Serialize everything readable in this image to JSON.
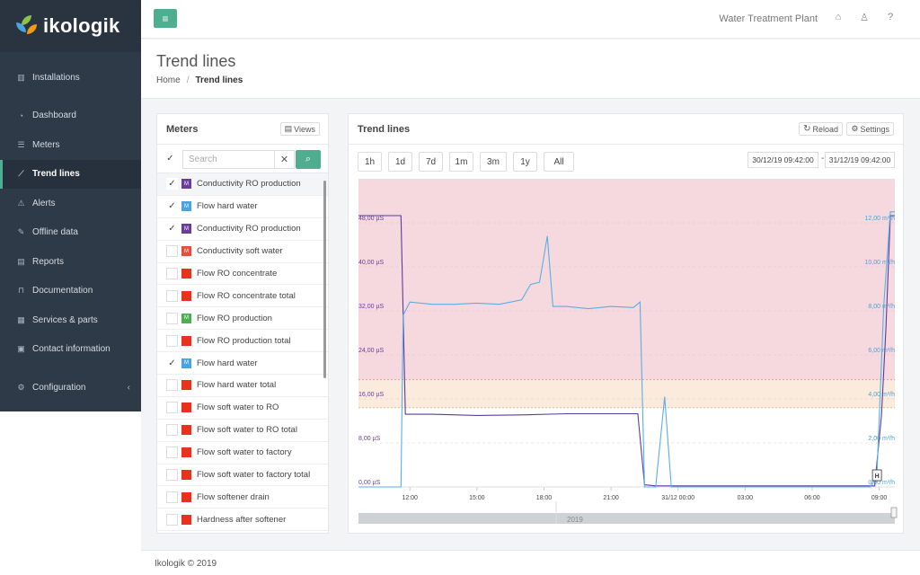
{
  "app": {
    "brand": "ikologik"
  },
  "sidebar": {
    "items": [
      {
        "label": "Installations",
        "icon": "map-icon",
        "glyph": "▥"
      },
      {
        "label": "Dashboard",
        "icon": "dashboard-icon",
        "glyph": "◔"
      },
      {
        "label": "Meters",
        "icon": "list-icon",
        "glyph": "☰"
      },
      {
        "label": "Trend lines",
        "icon": "line-chart-icon",
        "glyph": "⟋"
      },
      {
        "label": "Alerts",
        "icon": "warning-icon",
        "glyph": "⚠"
      },
      {
        "label": "Offline data",
        "icon": "pencil-icon",
        "glyph": "✎"
      },
      {
        "label": "Reports",
        "icon": "file-icon",
        "glyph": "▤"
      },
      {
        "label": "Documentation",
        "icon": "bookmark-icon",
        "glyph": "⊓"
      },
      {
        "label": "Services & parts",
        "icon": "services-icon",
        "glyph": "▦"
      },
      {
        "label": "Contact information",
        "icon": "contact-icon",
        "glyph": "▣"
      },
      {
        "label": "Configuration",
        "icon": "gear-icon",
        "glyph": "⚙"
      }
    ]
  },
  "header": {
    "menu_glyph": "≡",
    "plant_name": "Water Treatment Plant",
    "factory_glyph": "⌂",
    "user_glyph": "♙",
    "help_glyph": "?"
  },
  "page": {
    "title": "Trend lines",
    "breadcrumb": {
      "home": "Home",
      "sep": "/",
      "current": "Trend lines"
    }
  },
  "meters_panel": {
    "title": "Meters",
    "views_label": "Views",
    "search_placeholder": "Search",
    "clear_glyph": "✕",
    "search_glyph": "⌕",
    "check_glyph": "✓",
    "items": [
      {
        "label": "Conductivity RO production",
        "checked": true,
        "color": "#6a3d9a",
        "badge": "M"
      },
      {
        "label": "Flow hard water",
        "checked": true,
        "color": "#4aa3df",
        "badge": "M"
      },
      {
        "label": "Conductivity RO production",
        "checked": true,
        "color": "#6a3d9a",
        "badge": "M"
      },
      {
        "label": "Conductivity soft water",
        "checked": false,
        "color": "#e74c3c",
        "badge": "M"
      },
      {
        "label": "Flow RO concentrate",
        "checked": false,
        "color": "#e8321e",
        "badge": ""
      },
      {
        "label": "Flow RO concentrate total",
        "checked": false,
        "color": "#e8321e",
        "badge": ""
      },
      {
        "label": "Flow RO production",
        "checked": false,
        "color": "#4caf50",
        "badge": "M"
      },
      {
        "label": "Flow RO production total",
        "checked": false,
        "color": "#e8321e",
        "badge": ""
      },
      {
        "label": "Flow hard water",
        "checked": true,
        "color": "#4aa3df",
        "badge": "M"
      },
      {
        "label": "Flow hard water total",
        "checked": false,
        "color": "#e8321e",
        "badge": ""
      },
      {
        "label": "Flow soft water to RO",
        "checked": false,
        "color": "#e8321e",
        "badge": ""
      },
      {
        "label": "Flow soft water to RO total",
        "checked": false,
        "color": "#e8321e",
        "badge": ""
      },
      {
        "label": "Flow soft water to factory",
        "checked": false,
        "color": "#e8321e",
        "badge": ""
      },
      {
        "label": "Flow soft water to factory total",
        "checked": false,
        "color": "#e8321e",
        "badge": ""
      },
      {
        "label": "Flow softener drain",
        "checked": false,
        "color": "#e8321e",
        "badge": ""
      },
      {
        "label": "Hardness after softener",
        "checked": false,
        "color": "#e8321e",
        "badge": ""
      }
    ]
  },
  "trend_panel": {
    "title": "Trend lines",
    "reload_label": "Reload",
    "reload_glyph": "↻",
    "settings_label": "Settings",
    "settings_glyph": "⚙",
    "ranges": [
      "1h",
      "1d",
      "7d",
      "1m",
      "3m",
      "1y",
      "All"
    ],
    "date_from": "30/12/19 09:42:00",
    "date_to": "31/12/19 09:42:00",
    "date_sep": "-",
    "navigator_label": "2019",
    "marker_label": "H"
  },
  "chart_data": {
    "type": "line",
    "x_ticks": [
      "12:00",
      "15:00",
      "18:00",
      "21:00",
      "31/12 00:00",
      "03:00",
      "06:00",
      "09:00"
    ],
    "y_left_ticks": [
      "0,00 µS",
      "8,00 µS",
      "16,00 µS",
      "24,00 µS",
      "32,00 µS",
      "40,00 µS",
      "48,00 µS"
    ],
    "y_right_ticks": [
      "0,00 m³/h",
      "2,00 m³/h",
      "4,00 m³/h",
      "6,00 m³/h",
      "8,00 m³/h",
      "10,00 m³/h",
      "12,00 m³/h"
    ],
    "y_left_range": [
      0,
      56
    ],
    "y_right_range": [
      0,
      14
    ],
    "x_range_hours": [
      9.7,
      33.7
    ],
    "bands": [
      {
        "from": 19.5,
        "to": 56,
        "color": "#f6d9de"
      },
      {
        "from": 14.4,
        "to": 19.5,
        "color": "#fbebdc"
      }
    ],
    "series": [
      {
        "name": "Conductivity RO production",
        "color": "#5b3b9e",
        "axis": "left",
        "points": [
          [
            9.7,
            49.3
          ],
          [
            11.6,
            49.3
          ],
          [
            11.8,
            13.2
          ],
          [
            13,
            13.2
          ],
          [
            15,
            13
          ],
          [
            17,
            13.1
          ],
          [
            19,
            13.3
          ],
          [
            21,
            13.3
          ],
          [
            22.2,
            13.3
          ],
          [
            22.5,
            0.4
          ],
          [
            23,
            0.2
          ],
          [
            26,
            0.2
          ],
          [
            30,
            0.2
          ],
          [
            32.8,
            0.2
          ],
          [
            33.1,
            13
          ],
          [
            33.3,
            28.5
          ],
          [
            33.5,
            49.3
          ],
          [
            33.7,
            49.3
          ]
        ]
      },
      {
        "name": "Flow hard water",
        "color": "#5aaee3",
        "axis": "right",
        "points": [
          [
            9.7,
            0
          ],
          [
            11.6,
            0
          ],
          [
            11.7,
            7.8
          ],
          [
            12,
            8.4
          ],
          [
            13,
            8.3
          ],
          [
            14,
            8.3
          ],
          [
            15,
            8.35
          ],
          [
            16,
            8.3
          ],
          [
            17,
            8.5
          ],
          [
            17.4,
            9.2
          ],
          [
            17.8,
            9.3
          ],
          [
            18,
            10.5
          ],
          [
            18.15,
            11.4
          ],
          [
            18.4,
            8.2
          ],
          [
            19,
            8.2
          ],
          [
            20,
            8.1
          ],
          [
            21,
            8.2
          ],
          [
            22,
            8.15
          ],
          [
            22.3,
            8.4
          ],
          [
            22.5,
            0
          ],
          [
            23,
            0
          ],
          [
            23.4,
            4.1
          ],
          [
            23.7,
            0
          ],
          [
            25,
            0
          ],
          [
            28,
            0
          ],
          [
            32.6,
            0
          ],
          [
            32.9,
            0.6
          ],
          [
            33.2,
            8.2
          ],
          [
            33.5,
            12.5
          ],
          [
            33.7,
            12.5
          ]
        ]
      }
    ]
  },
  "footer": {
    "copyright": "Ikologik © 2019"
  }
}
